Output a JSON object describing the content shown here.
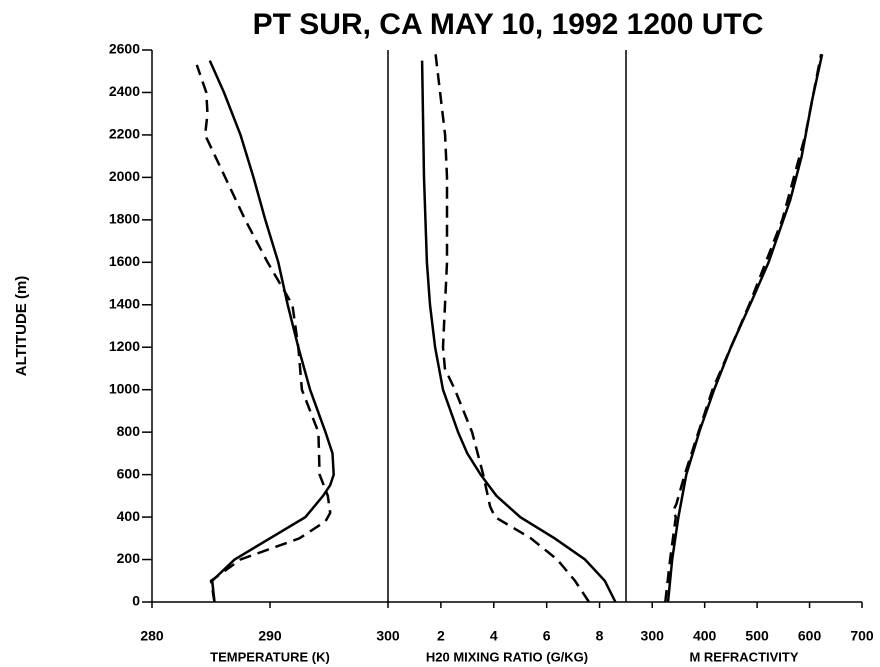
{
  "chart_data": [
    {
      "type": "line",
      "title": "PT SUR, CA  MAY 10, 1992  1200 UTC",
      "ylabel": "ALTITUDE (m)",
      "xlabel": "TEMPERATURE (K)",
      "ylim": [
        0,
        2600
      ],
      "yticks": [
        0,
        200,
        400,
        600,
        800,
        1000,
        1200,
        1400,
        1600,
        1800,
        2000,
        2200,
        2400,
        2600
      ],
      "xlim": [
        280,
        300
      ],
      "xticks": [
        280,
        290,
        300
      ],
      "series": [
        {
          "style": "solid",
          "color": "#000000",
          "x": [
            285.3,
            285.1,
            287.0,
            290.0,
            293.0,
            294.5,
            295.1,
            295.4,
            295.3,
            294.7,
            293.4,
            292.4,
            291.5,
            290.7,
            289.6,
            288.6,
            287.5,
            286.1,
            284.9
          ],
          "values": [
            0,
            100,
            200,
            300,
            400,
            500,
            550,
            600,
            700,
            800,
            1000,
            1200,
            1400,
            1600,
            1800,
            2000,
            2200,
            2400,
            2550
          ]
        },
        {
          "style": "dashed",
          "color": "#000000",
          "x": [
            285.3,
            285.0,
            287.5,
            292.5,
            294.7,
            295.1,
            294.9,
            294.2,
            294.1,
            292.7,
            292.4,
            291.9,
            289.8,
            287.9,
            286.2,
            284.5,
            284.7,
            284.6,
            283.8
          ],
          "values": [
            0,
            100,
            200,
            300,
            380,
            420,
            500,
            600,
            800,
            1000,
            1200,
            1400,
            1600,
            1800,
            2000,
            2200,
            2300,
            2400,
            2530
          ]
        }
      ]
    },
    {
      "type": "line",
      "xlabel": "H20 MIXING RATIO (G/KG)",
      "ylim": [
        0,
        2600
      ],
      "xlim": [
        0,
        9
      ],
      "xticks": [
        2,
        4,
        6,
        8
      ],
      "series": [
        {
          "style": "solid",
          "color": "#000000",
          "x": [
            8.6,
            8.2,
            7.45,
            6.3,
            5.0,
            4.1,
            3.5,
            3.0,
            2.65,
            2.08,
            1.78,
            1.59,
            1.47,
            1.36,
            1.29
          ],
          "values": [
            0,
            100,
            200,
            300,
            400,
            500,
            600,
            700,
            800,
            1000,
            1200,
            1400,
            1600,
            2000,
            2550
          ]
        },
        {
          "style": "dashed",
          "color": "#000000",
          "x": [
            7.6,
            7.07,
            6.4,
            5.4,
            5.0,
            4.05,
            3.86,
            3.6,
            3.18,
            2.53,
            2.15,
            2.08,
            2.23,
            2.23,
            2.16,
            1.97,
            1.78
          ],
          "values": [
            0,
            100,
            200,
            300,
            330,
            400,
            450,
            600,
            800,
            1000,
            1100,
            1200,
            1600,
            2000,
            2200,
            2400,
            2600
          ]
        }
      ]
    },
    {
      "type": "line",
      "xlabel": "M REFRACTIVITY",
      "ylim": [
        0,
        2600
      ],
      "xlim": [
        250,
        700
      ],
      "xticks": [
        300,
        400,
        500,
        600,
        700
      ],
      "series": [
        {
          "style": "solid",
          "color": "#000000",
          "x": [
            330,
            338,
            350,
            365,
            391,
            418,
            450,
            490,
            522,
            563,
            585,
            605,
            624
          ],
          "values": [
            0,
            200,
            400,
            600,
            810,
            1000,
            1200,
            1420,
            1600,
            1893,
            2100,
            2365,
            2580
          ]
        },
        {
          "style": "dashed",
          "color": "#000000",
          "x": [
            325,
            334,
            345,
            340,
            346,
            362,
            388,
            415,
            485,
            548,
            592,
            622
          ],
          "values": [
            0,
            200,
            400,
            430,
            460,
            600,
            800,
            1000,
            1400,
            1800,
            2200,
            2580
          ]
        }
      ]
    }
  ]
}
